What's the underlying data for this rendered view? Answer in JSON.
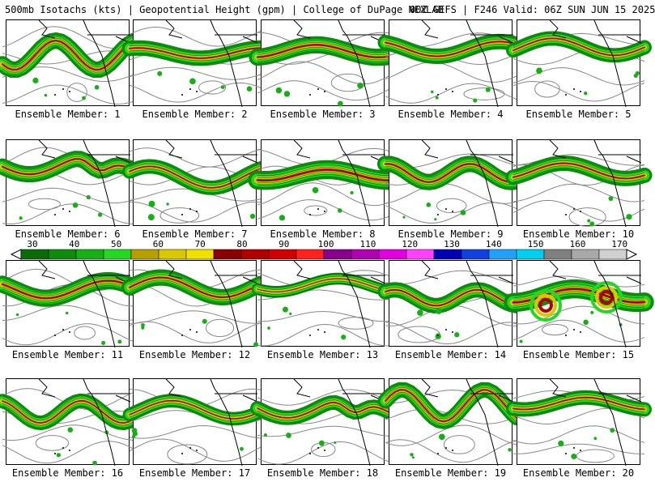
{
  "header": {
    "left": "500mb Isotachs (kts) | Geopotential Height (gpm) | College of DuPage NEXLAB",
    "right": "00Z GEFS | F246 Valid: 06Z SUN JUN 15 2025"
  },
  "members": [
    {
      "label": "Ensemble Member: 1",
      "jet": "wavy",
      "strength": 0.55
    },
    {
      "label": "Ensemble Member: 2",
      "jet": "zonal",
      "strength": 0.5
    },
    {
      "label": "Ensemble Member: 3",
      "jet": "zonal",
      "strength": 0.6
    },
    {
      "label": "Ensemble Member: 4",
      "jet": "zonal",
      "strength": 0.5
    },
    {
      "label": "Ensemble Member: 5",
      "jet": "zonal",
      "strength": 0.45
    },
    {
      "label": "Ensemble Member: 6",
      "jet": "trough",
      "strength": 0.55
    },
    {
      "label": "Ensemble Member: 7",
      "jet": "zonal",
      "strength": 0.45
    },
    {
      "label": "Ensemble Member: 8",
      "jet": "zonal",
      "strength": 0.7
    },
    {
      "label": "Ensemble Member: 9",
      "jet": "wavy",
      "strength": 0.55
    },
    {
      "label": "Ensemble Member: 10",
      "jet": "zonal",
      "strength": 0.5
    },
    {
      "label": "Ensemble Member: 11",
      "jet": "zonal",
      "strength": 0.6
    },
    {
      "label": "Ensemble Member: 12",
      "jet": "zonal",
      "strength": 0.55
    },
    {
      "label": "Ensemble Member: 13",
      "jet": "weak",
      "strength": 0.3
    },
    {
      "label": "Ensemble Member: 14",
      "jet": "wavy",
      "strength": 0.5
    },
    {
      "label": "Ensemble Member: 15",
      "jet": "lows",
      "strength": 0.7
    },
    {
      "label": "Ensemble Member: 16",
      "jet": "wavy",
      "strength": 0.45
    },
    {
      "label": "Ensemble Member: 17",
      "jet": "zonal",
      "strength": 0.4
    },
    {
      "label": "Ensemble Member: 18",
      "jet": "trough",
      "strength": 0.45
    },
    {
      "label": "Ensemble Member: 19",
      "jet": "wavy",
      "strength": 0.5
    },
    {
      "label": "Ensemble Member: 20",
      "jet": "zonal",
      "strength": 0.45
    }
  ],
  "colorbar": {
    "ticks": [
      "30",
      "40",
      "50",
      "60",
      "70",
      "80",
      "90",
      "100",
      "110",
      "120",
      "130",
      "140",
      "150",
      "160",
      "170"
    ],
    "colors": [
      "#0b6b0b",
      "#0e8a0e",
      "#16b016",
      "#22d822",
      "#b5a000",
      "#d8c800",
      "#f0e000",
      "#8b0000",
      "#b00000",
      "#d00000",
      "#ff2020",
      "#8b008b",
      "#b000b0",
      "#e000e0",
      "#ff40ff",
      "#0000b0",
      "#1040e0",
      "#20a0ff",
      "#00d0f0",
      "#808080",
      "#a8a8a8",
      "#d0d0d0"
    ]
  }
}
